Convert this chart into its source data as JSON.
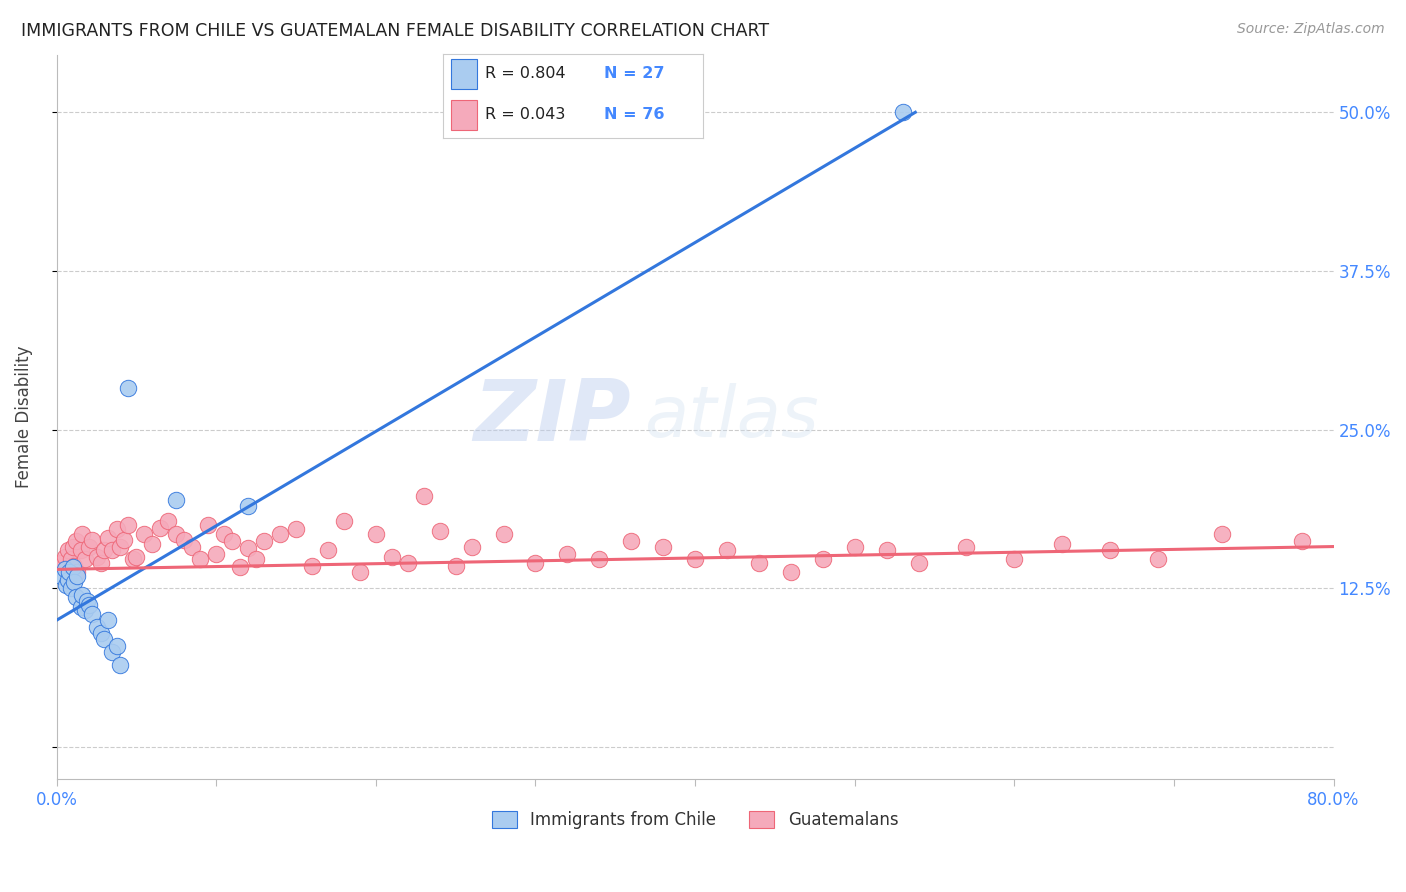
{
  "title": "IMMIGRANTS FROM CHILE VS GUATEMALAN FEMALE DISABILITY CORRELATION CHART",
  "source": "Source: ZipAtlas.com",
  "ylabel": "Female Disability",
  "watermark": "ZIPatlas",
  "legend_r1": "R = 0.804",
  "legend_n1": "N = 27",
  "legend_r2": "R = 0.043",
  "legend_n2": "N = 76",
  "legend_label1": "Immigrants from Chile",
  "legend_label2": "Guatemalans",
  "xlim": [
    0.0,
    0.8
  ],
  "ylim": [
    -0.025,
    0.545
  ],
  "yticks": [
    0.0,
    0.125,
    0.25,
    0.375,
    0.5
  ],
  "ytick_labels": [
    "",
    "12.5%",
    "25.0%",
    "37.5%",
    "50.0%"
  ],
  "xticks": [
    0.0,
    0.1,
    0.2,
    0.3,
    0.4,
    0.5,
    0.6,
    0.7,
    0.8
  ],
  "xtick_labels": [
    "0.0%",
    "",
    "",
    "",
    "",
    "",
    "",
    "",
    "80.0%"
  ],
  "color_chile": "#aaccf0",
  "color_guatemala": "#f5aabb",
  "color_line_chile": "#3377dd",
  "color_line_guatemala": "#ee6677",
  "color_axis_text": "#4488ff",
  "background_color": "#ffffff",
  "grid_color": "#cccccc",
  "chile_x": [
    0.003,
    0.005,
    0.006,
    0.007,
    0.008,
    0.009,
    0.01,
    0.011,
    0.012,
    0.013,
    0.015,
    0.016,
    0.018,
    0.019,
    0.02,
    0.022,
    0.025,
    0.028,
    0.03,
    0.032,
    0.035,
    0.038,
    0.04,
    0.045,
    0.075,
    0.12,
    0.53
  ],
  "chile_y": [
    0.135,
    0.14,
    0.128,
    0.132,
    0.138,
    0.125,
    0.142,
    0.13,
    0.118,
    0.135,
    0.11,
    0.12,
    0.108,
    0.115,
    0.112,
    0.105,
    0.095,
    0.09,
    0.085,
    0.1,
    0.075,
    0.08,
    0.065,
    0.283,
    0.195,
    0.19,
    0.5
  ],
  "guatemala_x": [
    0.003,
    0.005,
    0.006,
    0.007,
    0.008,
    0.009,
    0.01,
    0.011,
    0.012,
    0.013,
    0.015,
    0.016,
    0.018,
    0.02,
    0.022,
    0.025,
    0.028,
    0.03,
    0.032,
    0.035,
    0.038,
    0.04,
    0.042,
    0.045,
    0.048,
    0.05,
    0.055,
    0.06,
    0.065,
    0.07,
    0.075,
    0.08,
    0.085,
    0.09,
    0.095,
    0.1,
    0.105,
    0.11,
    0.115,
    0.12,
    0.125,
    0.13,
    0.14,
    0.15,
    0.16,
    0.17,
    0.18,
    0.19,
    0.2,
    0.21,
    0.22,
    0.23,
    0.24,
    0.25,
    0.26,
    0.28,
    0.3,
    0.32,
    0.34,
    0.36,
    0.38,
    0.4,
    0.42,
    0.44,
    0.46,
    0.48,
    0.5,
    0.52,
    0.54,
    0.57,
    0.6,
    0.63,
    0.66,
    0.69,
    0.73,
    0.78
  ],
  "guatemala_y": [
    0.145,
    0.15,
    0.14,
    0.155,
    0.135,
    0.148,
    0.158,
    0.143,
    0.162,
    0.138,
    0.155,
    0.168,
    0.148,
    0.158,
    0.163,
    0.15,
    0.145,
    0.155,
    0.165,
    0.155,
    0.172,
    0.158,
    0.163,
    0.175,
    0.148,
    0.15,
    0.168,
    0.16,
    0.173,
    0.178,
    0.168,
    0.163,
    0.158,
    0.148,
    0.175,
    0.152,
    0.168,
    0.162,
    0.142,
    0.157,
    0.148,
    0.162,
    0.168,
    0.172,
    0.143,
    0.155,
    0.178,
    0.138,
    0.168,
    0.15,
    0.145,
    0.198,
    0.17,
    0.143,
    0.158,
    0.168,
    0.145,
    0.152,
    0.148,
    0.162,
    0.158,
    0.148,
    0.155,
    0.145,
    0.138,
    0.148,
    0.158,
    0.155,
    0.145,
    0.158,
    0.148,
    0.16,
    0.155,
    0.148,
    0.168,
    0.162
  ],
  "chile_line_x": [
    0.0,
    0.538
  ],
  "chile_line_y": [
    0.1,
    0.5
  ],
  "guat_line_x": [
    0.0,
    0.8
  ],
  "guat_line_y": [
    0.14,
    0.158
  ]
}
